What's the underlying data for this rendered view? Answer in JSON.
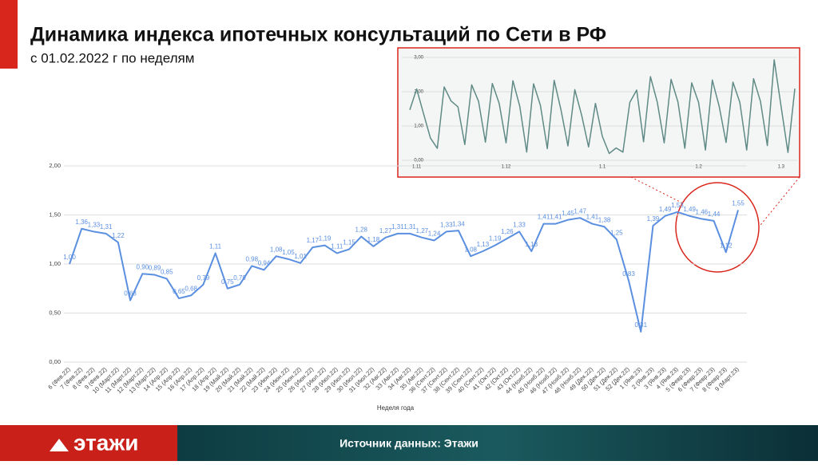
{
  "chart_data": [
    {
      "type": "line",
      "title": "Динамика индекса ипотечных консультаций по Сети в РФ",
      "subtitle": "с 01.02.2022 г по неделям",
      "x_label": "Неделя года",
      "color": "#5b8fe0",
      "categories": [
        "6 (Фев.22)",
        "7 (Фев.22)",
        "8 (Фев.22)",
        "9 (Фев.22)",
        "10 (Март.22)",
        "11 (Март.22)",
        "12 (Март.22)",
        "13 (Март.22)",
        "14 (Апр.22)",
        "15 (Апр.22)",
        "16 (Апр.22)",
        "17 (Апр.22)",
        "18 (Апр.22)",
        "19 (Май.22)",
        "20 (Май.22)",
        "21 (Май.22)",
        "22 (Май.22)",
        "23 (Июн.22)",
        "24 (Июн.22)",
        "25 (Июн.22)",
        "26 (Июн.22)",
        "27 (Июл.22)",
        "28 (Июл.22)",
        "29 (Июл.22)",
        "30 (Июл.22)",
        "31 (Июл.22)",
        "32 (Авг.22)",
        "33 (Авг.22)",
        "34 (Авг.22)",
        "35 (Авг.22)",
        "36 (Сент.22)",
        "37 (Сент.22)",
        "38 (Сент.22)",
        "39 (Сент.22)",
        "40 (Сент.22)",
        "41 (Окт.22)",
        "42 (Окт.22)",
        "43 (Окт.22)",
        "44 (Нояб.22)",
        "45 (Нояб.22)",
        "46 (Нояб.22)",
        "47 (Нояб.22)",
        "48 (Нояб.22)",
        "49 (Дек.22)",
        "50 (Дек.22)",
        "51 (Дек.22)",
        "52 (Дек.22)",
        "1 (Янв.23)",
        "2 (Янв.23)",
        "3 (Янв.23)",
        "4 (Янв.23)",
        "5 (Февр.23)",
        "6 (Февр.23)",
        "7 (Февр.23)",
        "8 (Февр.23)",
        "9 (Март.23)"
      ],
      "values": [
        1.0,
        1.36,
        1.33,
        1.31,
        1.22,
        0.63,
        0.9,
        0.89,
        0.85,
        0.65,
        0.68,
        0.79,
        1.11,
        0.75,
        0.79,
        0.98,
        0.94,
        1.08,
        1.05,
        1.01,
        1.17,
        1.19,
        1.11,
        1.15,
        1.28,
        1.18,
        1.27,
        1.31,
        1.31,
        1.27,
        1.24,
        1.33,
        1.34,
        1.08,
        1.13,
        1.19,
        1.26,
        1.33,
        1.13,
        1.41,
        1.41,
        1.45,
        1.47,
        1.41,
        1.38,
        1.25,
        0.83,
        0.31,
        1.39,
        1.49,
        1.53,
        1.49,
        1.46,
        1.44,
        1.12,
        1.55
      ],
      "value_labels": [
        "1,00",
        "1,36",
        "1,33",
        "1,31",
        "1,22",
        "0,63",
        "0,90",
        "0,89",
        "0,85",
        "0,65",
        "0,68",
        "0,79",
        "1,11",
        "0,75",
        "0,79",
        "0,98",
        "0,94",
        "1,08",
        "1,05",
        "1,01",
        "1,17",
        "1,19",
        "1,11",
        "1,15",
        "1,28",
        "1,18",
        "1,27",
        "1,31",
        "1,31",
        "1,27",
        "1,24",
        "1,33",
        "1,34",
        "1,08",
        "1,13",
        "1,19",
        "1,26",
        "1,33",
        "1,13",
        "1,41",
        "1,41",
        "1,45",
        "1,47",
        "1,41",
        "1,38",
        "1,25",
        "0,83",
        "0,31",
        "1,39",
        "1,49",
        "1,53",
        "1,49",
        "1,46",
        "1,44",
        "1,12",
        "1,55"
      ],
      "ylim": [
        0,
        2
      ],
      "yticks": [
        {
          "value": 0,
          "label": "0,00"
        },
        {
          "value": 0.5,
          "label": "0,50"
        },
        {
          "value": 1,
          "label": "1,00"
        },
        {
          "value": 1.5,
          "label": "1,50"
        },
        {
          "value": 2,
          "label": "2,00"
        }
      ],
      "grid": true
    },
    {
      "type": "line",
      "color": "#5f8a86",
      "categories": [
        null,
        "1.11",
        null,
        null,
        null,
        null,
        null,
        null,
        null,
        null,
        null,
        null,
        null,
        null,
        "1.12",
        null,
        null,
        null,
        null,
        null,
        null,
        null,
        null,
        null,
        null,
        null,
        null,
        null,
        "1.1",
        null,
        null,
        null,
        null,
        null,
        null,
        null,
        null,
        null,
        null,
        null,
        null,
        null,
        "1.2",
        null,
        null,
        null,
        null,
        null,
        null,
        null,
        null,
        null,
        null,
        null,
        "1.3",
        null,
        null
      ],
      "values": [
        1.47,
        2.08,
        1.36,
        0.65,
        0.35,
        2.14,
        1.73,
        1.56,
        0.46,
        2.2,
        1.72,
        0.53,
        2.24,
        1.66,
        0.51,
        2.32,
        1.57,
        0.24,
        2.23,
        1.6,
        0.34,
        2.33,
        1.46,
        0.42,
        2.06,
        1.31,
        0.39,
        1.66,
        0.7,
        0.2,
        0.36,
        0.24,
        1.69,
        2.05,
        0.54,
        2.44,
        1.69,
        0.51,
        2.36,
        1.7,
        0.35,
        2.26,
        1.69,
        0.3,
        2.34,
        1.57,
        0.52,
        2.28,
        1.69,
        0.3,
        2.38,
        1.72,
        0.43,
        2.93,
        1.57,
        0.23,
        2.09
      ],
      "ylim": [
        0,
        3
      ],
      "yticks": [
        {
          "value": 0,
          "label": "0,00"
        },
        {
          "value": 1,
          "label": "1,00"
        },
        {
          "value": 2,
          "label": "2,00"
        },
        {
          "value": 3,
          "label": "3,00"
        }
      ],
      "grid": true
    }
  ],
  "footer": {
    "logo": "этажи",
    "source": "Источник данных: Этажи"
  }
}
